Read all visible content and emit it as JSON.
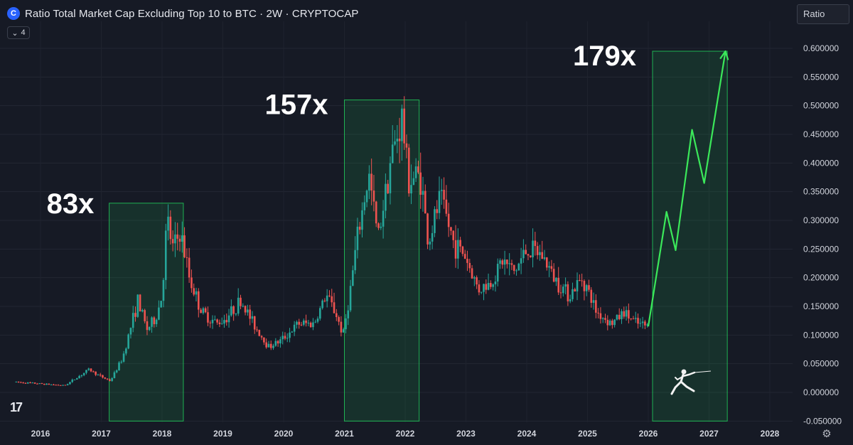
{
  "header": {
    "title": "Ratio Total Market Cap Excluding Top 10 to BTC · 2W · CRYPTOCAP",
    "logo_glyph": "C",
    "indicator_count": "4",
    "scale_label": "Ratio",
    "tv_logo": "17"
  },
  "colors": {
    "background": "#161a25",
    "up": "#26a69a",
    "down": "#ef5350",
    "box": "#22e060",
    "arrow": "#3be85a"
  },
  "chart_data": {
    "type": "candlestick",
    "x_ticks": [
      "2016",
      "2017",
      "2018",
      "2019",
      "2020",
      "2021",
      "2022",
      "2023",
      "2024",
      "2025",
      "2026",
      "2027",
      "2028"
    ],
    "y_ticks": [
      "0.600000",
      "0.550000",
      "0.500000",
      "0.450000",
      "0.400000",
      "0.350000",
      "0.300000",
      "0.250000",
      "0.200000",
      "0.150000",
      "0.100000",
      "0.050000",
      "0.000000",
      "-0.050000"
    ],
    "ylim": [
      -0.05,
      0.6
    ],
    "xlim": [
      2015.6,
      2028.4
    ],
    "price_path": [
      [
        2015.6,
        0.018
      ],
      [
        2016.0,
        0.015
      ],
      [
        2016.4,
        0.012
      ],
      [
        2016.8,
        0.04
      ],
      [
        2016.95,
        0.03
      ],
      [
        2017.15,
        0.02
      ],
      [
        2017.35,
        0.06
      ],
      [
        2017.5,
        0.12
      ],
      [
        2017.6,
        0.16
      ],
      [
        2017.75,
        0.11
      ],
      [
        2017.9,
        0.13
      ],
      [
        2018.0,
        0.17
      ],
      [
        2018.08,
        0.3
      ],
      [
        2018.18,
        0.25
      ],
      [
        2018.3,
        0.28
      ],
      [
        2018.45,
        0.2
      ],
      [
        2018.65,
        0.14
      ],
      [
        2018.9,
        0.12
      ],
      [
        2019.05,
        0.13
      ],
      [
        2019.3,
        0.16
      ],
      [
        2019.5,
        0.12
      ],
      [
        2019.75,
        0.08
      ],
      [
        2019.95,
        0.09
      ],
      [
        2020.25,
        0.12
      ],
      [
        2020.5,
        0.12
      ],
      [
        2020.7,
        0.17
      ],
      [
        2020.85,
        0.14
      ],
      [
        2020.98,
        0.1
      ],
      [
        2021.1,
        0.18
      ],
      [
        2021.2,
        0.26
      ],
      [
        2021.4,
        0.38
      ],
      [
        2021.55,
        0.27
      ],
      [
        2021.75,
        0.4
      ],
      [
        2021.95,
        0.48
      ],
      [
        2022.05,
        0.37
      ],
      [
        2022.25,
        0.38
      ],
      [
        2022.38,
        0.26
      ],
      [
        2022.58,
        0.34
      ],
      [
        2022.8,
        0.26
      ],
      [
        2022.98,
        0.24
      ],
      [
        2023.2,
        0.18
      ],
      [
        2023.4,
        0.19
      ],
      [
        2023.6,
        0.23
      ],
      [
        2023.8,
        0.21
      ],
      [
        2024.0,
        0.25
      ],
      [
        2024.25,
        0.24
      ],
      [
        2024.45,
        0.2
      ],
      [
        2024.7,
        0.17
      ],
      [
        2024.92,
        0.2
      ],
      [
        2025.15,
        0.14
      ],
      [
        2025.4,
        0.12
      ],
      [
        2025.6,
        0.14
      ],
      [
        2025.8,
        0.12
      ],
      [
        2026.0,
        0.115
      ]
    ],
    "projection": [
      [
        2026.0,
        0.115
      ],
      [
        2026.3,
        0.315
      ],
      [
        2026.45,
        0.248
      ],
      [
        2026.72,
        0.458
      ],
      [
        2026.92,
        0.365
      ],
      [
        2027.27,
        0.595
      ]
    ],
    "boxes": [
      {
        "label": "83x",
        "x0": 2017.13,
        "x1": 2018.35,
        "y0": -0.05,
        "y1": 0.33
      },
      {
        "label": "157x",
        "x0": 2021.0,
        "x1": 2022.23,
        "y0": -0.05,
        "y1": 0.51
      },
      {
        "label": "179x",
        "x0": 2026.07,
        "x1": 2027.3,
        "y0": -0.05,
        "y1": 0.595
      }
    ]
  }
}
